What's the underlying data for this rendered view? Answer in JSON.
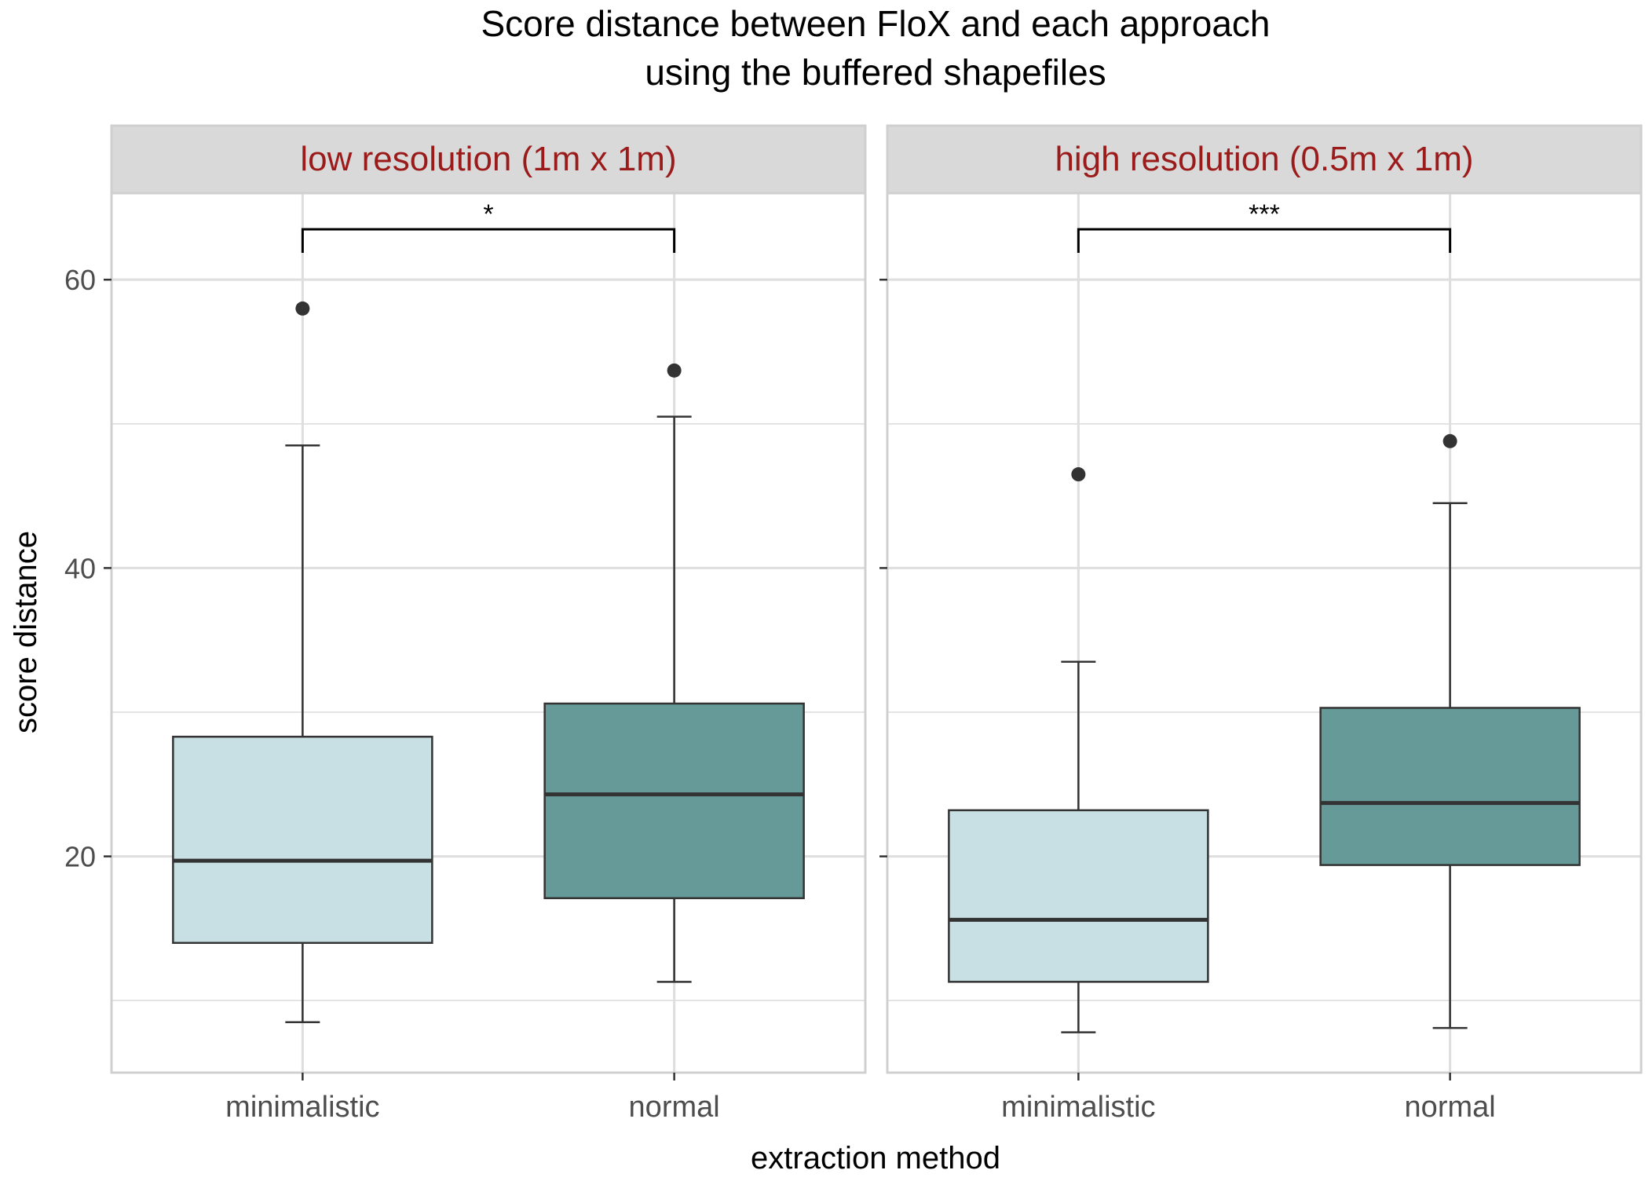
{
  "chart_data": {
    "type": "boxplot",
    "title": "Score distance between FloX and each approach",
    "subtitle": "using the buffered shapefiles",
    "xlabel": "extraction method",
    "ylabel": "score distance",
    "ylim": [
      5,
      66
    ],
    "yticks": [
      20,
      40,
      60
    ],
    "grid": true,
    "categories": [
      "minimalistic",
      "normal"
    ],
    "colors": {
      "minimalistic": "#c8dfe3",
      "normal": "#669a99",
      "strip_text": "#9b1b1b",
      "strip_fill": "#d9d9d9"
    },
    "facets": [
      {
        "label": "low resolution (1m x 1m)",
        "significance": "*",
        "boxes": [
          {
            "category": "minimalistic",
            "whisker_low": 8.5,
            "q1": 14.0,
            "median": 19.7,
            "q3": 28.3,
            "whisker_high": 48.5,
            "outliers": [
              58.0
            ]
          },
          {
            "category": "normal",
            "whisker_low": 11.3,
            "q1": 17.1,
            "median": 24.3,
            "q3": 30.6,
            "whisker_high": 50.5,
            "outliers": [
              53.7
            ]
          }
        ]
      },
      {
        "label": "high resolution (0.5m x 1m)",
        "significance": "***",
        "boxes": [
          {
            "category": "minimalistic",
            "whisker_low": 7.8,
            "q1": 11.3,
            "median": 15.6,
            "q3": 23.2,
            "whisker_high": 33.5,
            "outliers": [
              46.5
            ]
          },
          {
            "category": "normal",
            "whisker_low": 8.1,
            "q1": 19.4,
            "median": 23.7,
            "q3": 30.3,
            "whisker_high": 44.5,
            "outliers": [
              48.8
            ]
          }
        ]
      }
    ]
  }
}
